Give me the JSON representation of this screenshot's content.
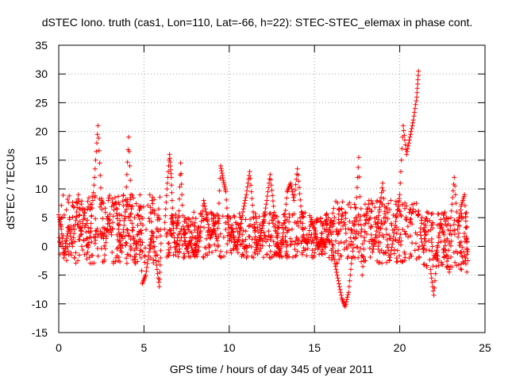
{
  "chart_data": {
    "type": "scatter",
    "title": "dSTEC Iono. truth (cas1, Lon=110, Lat=-66, h=22): STEC-STEC_elemax in phase cont.",
    "xlabel": "GPS time / hours of day 345 of year 2011",
    "ylabel": "dSTEC  / TECUs",
    "xlim": [
      0,
      25
    ],
    "ylim": [
      -15,
      35
    ],
    "xticks": [
      0,
      5,
      10,
      15,
      20,
      25
    ],
    "yticks": [
      -15,
      -10,
      -5,
      0,
      5,
      10,
      15,
      20,
      25,
      30,
      35
    ],
    "grid": true,
    "marker": "+",
    "color": "#ff0000",
    "segments": [
      {
        "x": [
          0.0,
          0.15,
          0.3,
          0.45,
          0.6,
          0.8,
          1.0,
          1.15,
          1.3,
          1.5,
          1.7,
          1.9,
          2.1,
          2.3,
          2.5,
          2.7,
          2.9,
          3.1,
          3.3,
          3.5,
          3.7,
          3.9,
          4.1,
          4.3,
          4.5,
          4.7,
          4.9,
          5.1,
          5.3,
          5.5,
          5.7,
          5.9,
          6.0
        ],
        "y": [
          5.5,
          3.0,
          -2.0,
          1.0,
          3.5,
          0.0,
          4.5,
          9.0,
          2.0,
          6.0,
          -1.0,
          4.0,
          12.0,
          21.0,
          8.0,
          -1.5,
          5.0,
          2.0,
          8.5,
          3.0,
          -1.0,
          6.0,
          19.0,
          4.0,
          -3.0,
          7.0,
          -6.5,
          -5.0,
          -1.0,
          2.5,
          -2.5,
          -7.0,
          0.5
        ]
      },
      {
        "x": [
          6.2,
          6.35,
          6.5,
          6.6,
          6.7,
          6.85,
          7.0,
          7.15,
          7.3,
          7.5,
          7.7,
          7.9,
          8.1,
          8.3,
          8.5,
          8.7,
          8.9,
          9.1,
          9.3,
          9.5,
          9.65,
          9.8,
          10.0,
          10.2,
          10.4,
          10.6,
          10.8,
          11.0,
          11.2,
          11.4,
          11.6,
          11.8,
          12.0,
          12.2,
          12.4,
          12.6,
          12.8,
          13.0,
          13.2,
          13.4,
          13.6,
          13.8,
          14.0,
          14.2,
          14.4,
          14.6,
          14.8,
          15.0,
          15.2,
          15.4,
          15.6,
          15.8,
          16.0
        ],
        "y": [
          3.0,
          10.0,
          16.0,
          12.0,
          4.0,
          -1.0,
          2.0,
          14.5,
          3.5,
          -0.5,
          1.0,
          -1.5,
          0.5,
          2.5,
          8.0,
          5.0,
          1.5,
          3.0,
          1.0,
          14.0,
          11.5,
          9.5,
          1.0,
          3.0,
          -0.5,
          2.0,
          6.0,
          9.0,
          13.0,
          6.0,
          -0.5,
          1.5,
          4.0,
          8.0,
          12.5,
          7.0,
          0.5,
          -1.0,
          3.0,
          9.5,
          11.0,
          8.0,
          13.5,
          7.0,
          1.0,
          0.5,
          5.0,
          3.0,
          -0.5,
          1.5,
          0.0,
          2.0,
          4.5
        ]
      },
      {
        "x": [
          16.0,
          16.2,
          16.4,
          16.6,
          16.8,
          17.0,
          17.2,
          17.4,
          17.6,
          17.8,
          18.0,
          18.2,
          18.4,
          18.6,
          18.8,
          19.0,
          19.2,
          19.4,
          19.6,
          19.8,
          20.0,
          20.2,
          20.4,
          20.6,
          20.8,
          21.0,
          21.1
        ],
        "y": [
          1.0,
          -3.0,
          -6.0,
          -9.0,
          -10.5,
          -8.0,
          -2.0,
          5.0,
          15.5,
          -5.0,
          4.0,
          8.0,
          -1.0,
          2.0,
          6.0,
          11.0,
          3.0,
          -2.5,
          1.0,
          5.0,
          9.0,
          21.0,
          16.0,
          19.0,
          22.0,
          26.0,
          30.5
        ]
      },
      {
        "x": [
          21.2,
          21.4,
          21.6,
          21.8,
          22.0,
          22.2,
          22.4,
          22.6,
          22.8,
          23.0,
          23.2,
          23.4,
          23.6,
          23.8,
          24.0
        ],
        "y": [
          2.5,
          -1.0,
          6.0,
          -4.0,
          -8.5,
          -1.0,
          4.0,
          2.0,
          -3.5,
          5.0,
          12.0,
          3.0,
          7.0,
          9.0,
          -2.5
        ]
      }
    ],
    "cloud": [
      {
        "x0": 0.0,
        "x1": 6.0,
        "ymin": -3.0,
        "ymax": 9.0
      },
      {
        "x0": 6.3,
        "x1": 16.0,
        "ymin": -2.0,
        "ymax": 6.0
      },
      {
        "x0": 16.0,
        "x1": 21.2,
        "ymin": -3.0,
        "ymax": 8.0
      },
      {
        "x0": 21.2,
        "x1": 24.0,
        "ymin": -4.5,
        "ymax": 6.0
      }
    ]
  }
}
